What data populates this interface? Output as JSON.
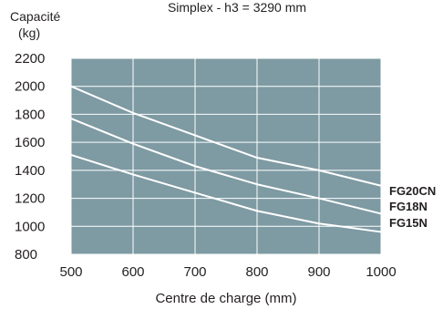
{
  "chart_data": {
    "type": "line",
    "title": "Simplex - h3 = 3290 mm",
    "ylabel": "Capacité",
    "yunit": "(kg)",
    "xlabel": "Centre de charge (mm)",
    "xlim": [
      500,
      1000
    ],
    "ylim": [
      800,
      2200
    ],
    "xticks": [
      "500",
      "600",
      "700",
      "800",
      "900",
      "1000"
    ],
    "yticks": [
      "2200",
      "2000",
      "1800",
      "1600",
      "1400",
      "1200",
      "1000",
      "800"
    ],
    "grid": true,
    "plot_background": "#7e9aa3",
    "grid_color": "#ffffff",
    "line_color": "#ffffff",
    "x": [
      500,
      600,
      700,
      800,
      900,
      1000
    ],
    "series": [
      {
        "name": "FG20CN",
        "values": [
          2000,
          1810,
          1650,
          1490,
          1400,
          1290
        ]
      },
      {
        "name": "FG18N",
        "values": [
          1770,
          1590,
          1430,
          1300,
          1200,
          1090
        ]
      },
      {
        "name": "FG15N",
        "values": [
          1510,
          1370,
          1240,
          1110,
          1020,
          960
        ]
      }
    ]
  }
}
